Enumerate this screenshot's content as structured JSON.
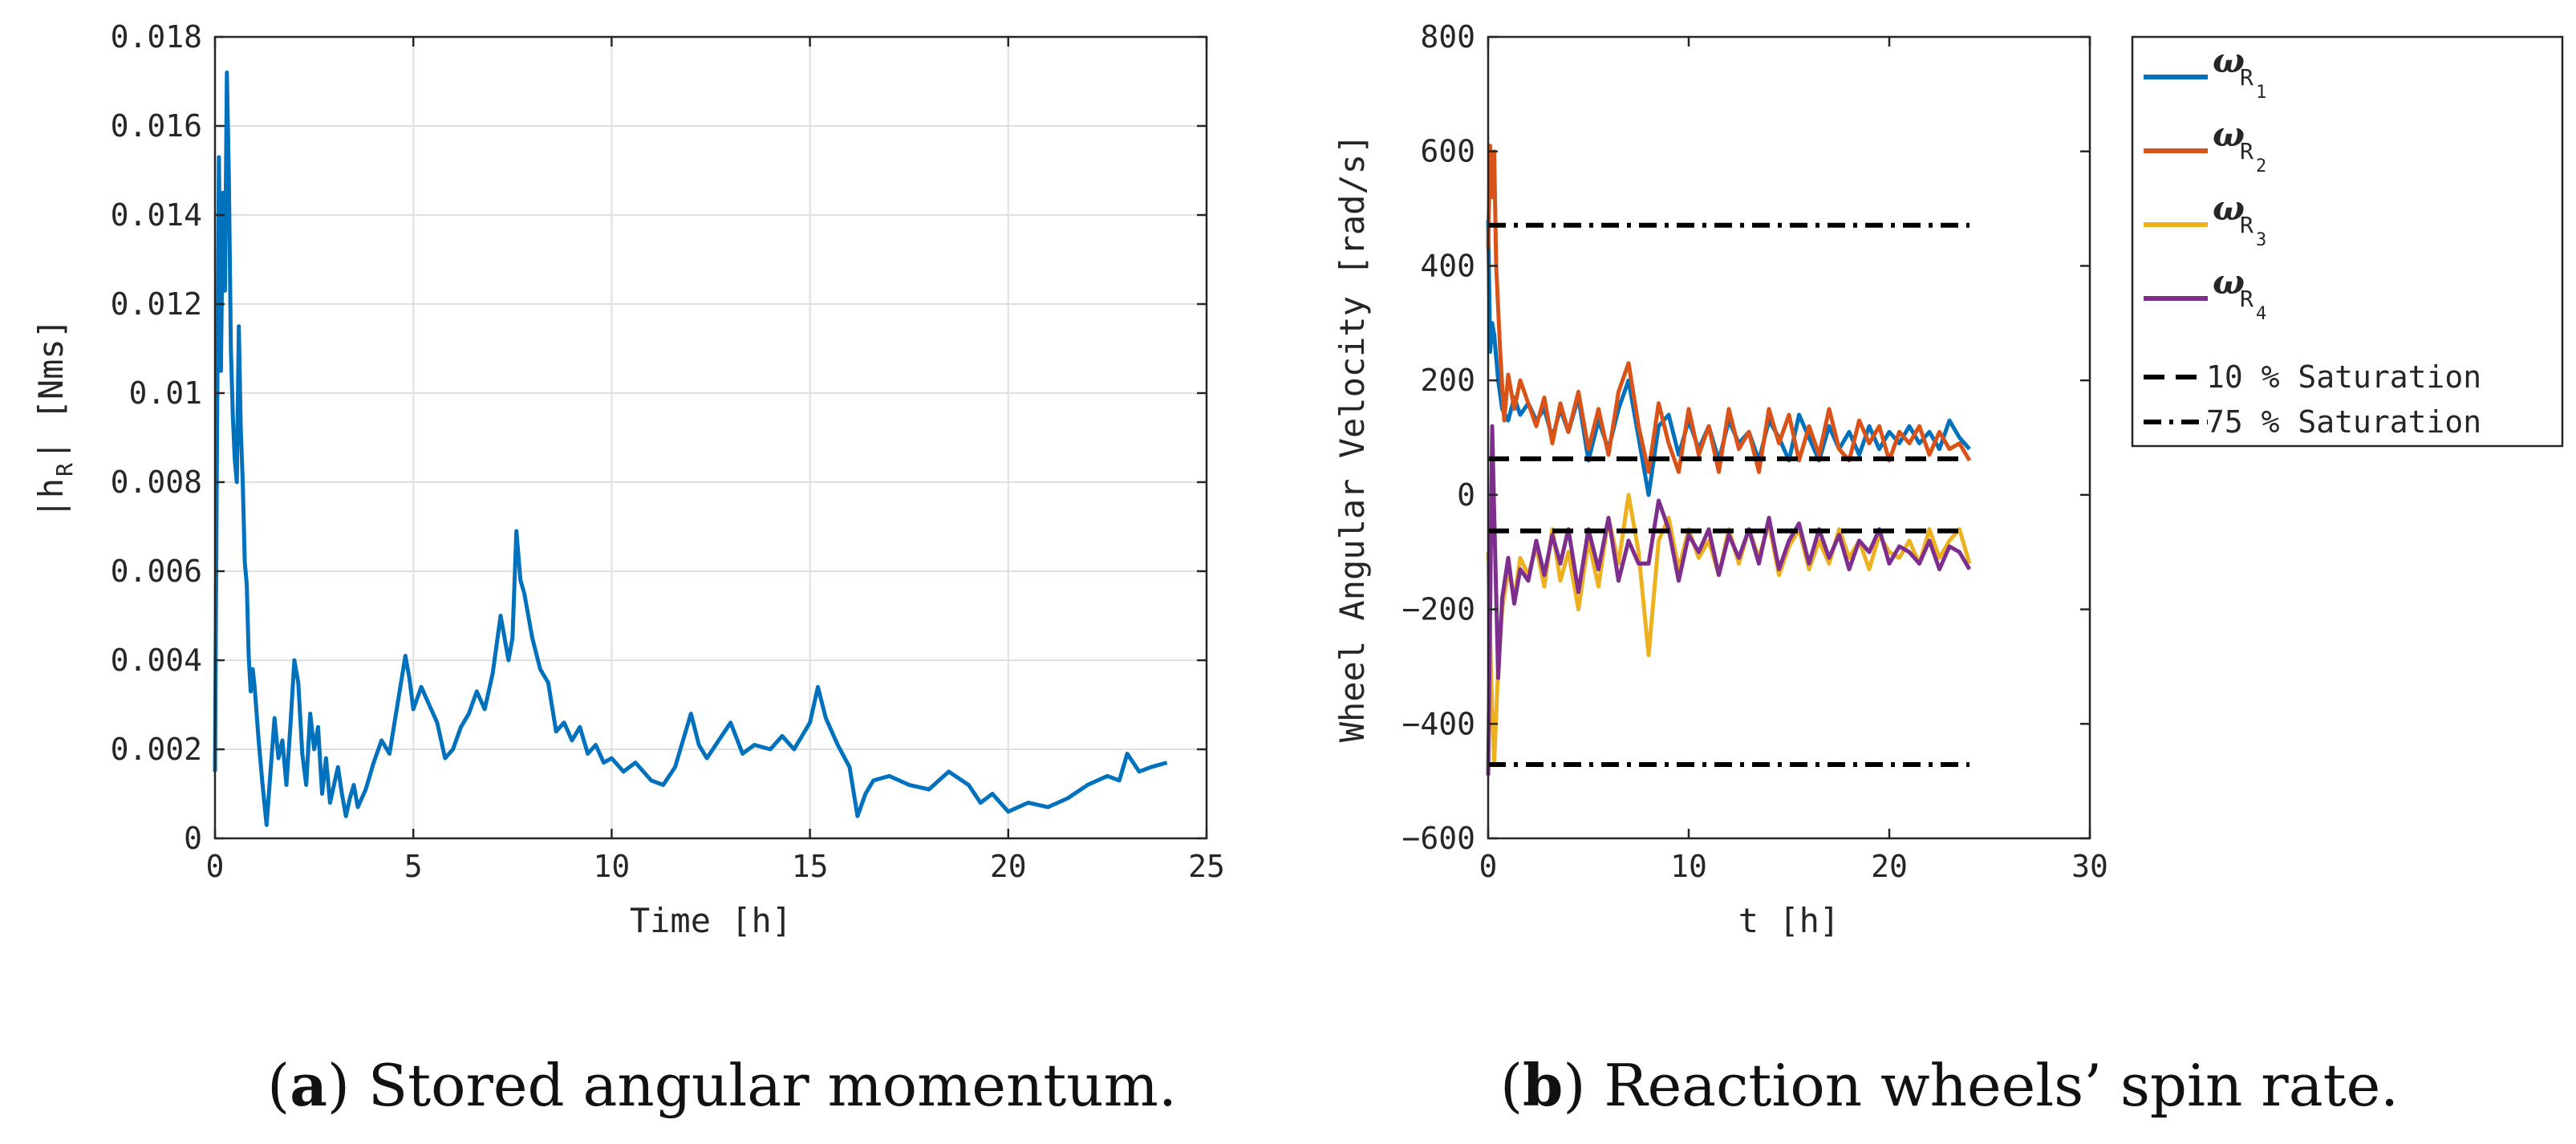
{
  "chart_data": [
    {
      "id": "a",
      "type": "line",
      "caption_label": "a",
      "caption_text": "Stored angular momentum.",
      "xlabel": "Time [h]",
      "ylabel": "|h",
      "ylabel_sub": "R",
      "ylabel_suffix": "| [Nms]",
      "xlim": [
        0,
        25
      ],
      "ylim": [
        0,
        0.018
      ],
      "xticks": [
        0,
        5,
        10,
        15,
        20,
        25
      ],
      "xtick_labels": [
        "0",
        "5",
        "10",
        "15",
        "20",
        "25"
      ],
      "yticks": [
        0,
        0.002,
        0.004,
        0.006,
        0.008,
        0.01,
        0.012,
        0.014,
        0.016,
        0.018
      ],
      "ytick_labels": [
        "0",
        "0.002",
        "0.004",
        "0.006",
        "0.008",
        "0.01",
        "0.012",
        "0.014",
        "0.016",
        "0.018"
      ],
      "grid": true,
      "series": [
        {
          "name": "|h_R|",
          "color": "#0072BD",
          "x": [
            0,
            0.05,
            0.1,
            0.15,
            0.2,
            0.25,
            0.3,
            0.35,
            0.4,
            0.45,
            0.5,
            0.55,
            0.6,
            0.65,
            0.7,
            0.75,
            0.8,
            0.85,
            0.9,
            0.95,
            1.0,
            1.1,
            1.2,
            1.3,
            1.4,
            1.5,
            1.6,
            1.7,
            1.8,
            1.9,
            2.0,
            2.1,
            2.2,
            2.3,
            2.4,
            2.5,
            2.6,
            2.7,
            2.8,
            2.9,
            3.0,
            3.1,
            3.2,
            3.3,
            3.4,
            3.5,
            3.6,
            3.8,
            4.0,
            4.2,
            4.4,
            4.6,
            4.8,
            4.9,
            5.0,
            5.2,
            5.4,
            5.6,
            5.8,
            6.0,
            6.2,
            6.4,
            6.6,
            6.8,
            7.0,
            7.2,
            7.4,
            7.5,
            7.6,
            7.7,
            7.8,
            8.0,
            8.2,
            8.4,
            8.6,
            8.8,
            9.0,
            9.2,
            9.4,
            9.6,
            9.8,
            10.0,
            10.3,
            10.6,
            11.0,
            11.3,
            11.6,
            12.0,
            12.2,
            12.4,
            12.7,
            13.0,
            13.3,
            13.6,
            14.0,
            14.3,
            14.6,
            15.0,
            15.2,
            15.4,
            15.7,
            16.0,
            16.2,
            16.4,
            16.6,
            17.0,
            17.5,
            18.0,
            18.5,
            19.0,
            19.3,
            19.6,
            20.0,
            20.5,
            21.0,
            21.5,
            22.0,
            22.5,
            22.8,
            23.0,
            23.3,
            23.6,
            24.0
          ],
          "y": [
            0.0015,
            0.009,
            0.0153,
            0.0105,
            0.0145,
            0.0123,
            0.0172,
            0.0148,
            0.011,
            0.0095,
            0.0085,
            0.008,
            0.0115,
            0.0092,
            0.008,
            0.0062,
            0.0057,
            0.0041,
            0.0033,
            0.0038,
            0.0034,
            0.0022,
            0.0012,
            0.0003,
            0.0015,
            0.0027,
            0.0018,
            0.0022,
            0.0012,
            0.0025,
            0.004,
            0.0035,
            0.0019,
            0.0012,
            0.0028,
            0.002,
            0.0025,
            0.001,
            0.0018,
            0.0008,
            0.0012,
            0.0016,
            0.001,
            0.0005,
            0.0009,
            0.0012,
            0.0007,
            0.0011,
            0.0017,
            0.0022,
            0.0019,
            0.003,
            0.0041,
            0.0036,
            0.0029,
            0.0034,
            0.003,
            0.0026,
            0.0018,
            0.002,
            0.0025,
            0.0028,
            0.0033,
            0.0029,
            0.0037,
            0.005,
            0.004,
            0.0045,
            0.0069,
            0.0058,
            0.0055,
            0.0045,
            0.0038,
            0.0035,
            0.0024,
            0.0026,
            0.0022,
            0.0025,
            0.0019,
            0.0021,
            0.0017,
            0.0018,
            0.0015,
            0.0017,
            0.0013,
            0.0012,
            0.0016,
            0.0028,
            0.0021,
            0.0018,
            0.0022,
            0.0026,
            0.0019,
            0.0021,
            0.002,
            0.0023,
            0.002,
            0.0026,
            0.0034,
            0.0027,
            0.0021,
            0.0016,
            0.0005,
            0.001,
            0.0013,
            0.0014,
            0.0012,
            0.0011,
            0.0015,
            0.0012,
            0.0008,
            0.001,
            0.0006,
            0.0008,
            0.0007,
            0.0009,
            0.0012,
            0.0014,
            0.0013,
            0.0019,
            0.0015,
            0.0016,
            0.0017
          ]
        }
      ]
    },
    {
      "id": "b",
      "type": "line",
      "caption_label": "b",
      "caption_text": "Reaction wheels’ spin rate.",
      "xlabel": "t [h]",
      "ylabel": "Wheel Angular Velocity [rad/s]",
      "xlim": [
        0,
        30
      ],
      "ylim": [
        -600,
        800
      ],
      "xticks": [
        0,
        10,
        20,
        30
      ],
      "xtick_labels": [
        "0",
        "10",
        "20",
        "30"
      ],
      "yticks": [
        -600,
        -400,
        -200,
        0,
        200,
        400,
        600,
        800
      ],
      "ytick_labels": [
        "−600",
        "−400",
        "−200",
        "0",
        "200",
        "400",
        "600",
        "800"
      ],
      "grid": false,
      "legend_position": "outside-right",
      "series": [
        {
          "name": "ω",
          "sub": "R",
          "subsub": "1",
          "color": "#0072BD",
          "x": [
            0,
            0.1,
            0.2,
            0.3,
            0.5,
            0.7,
            1.0,
            1.3,
            1.6,
            2.0,
            2.4,
            2.8,
            3.2,
            3.6,
            4.0,
            4.5,
            5.0,
            5.5,
            6.0,
            6.5,
            7.0,
            7.5,
            8.0,
            8.5,
            9.0,
            9.5,
            10.0,
            10.5,
            11.0,
            11.5,
            12.0,
            12.5,
            13.0,
            13.5,
            14.0,
            14.5,
            15.0,
            15.5,
            16.0,
            16.5,
            17.0,
            17.5,
            18.0,
            18.5,
            19.0,
            19.5,
            20.0,
            20.5,
            21.0,
            21.5,
            22.0,
            22.5,
            23.0,
            23.5,
            24.0
          ],
          "y": [
            480,
            250,
            300,
            280,
            200,
            150,
            130,
            170,
            140,
            160,
            130,
            150,
            100,
            150,
            110,
            170,
            60,
            130,
            80,
            150,
            200,
            100,
            0,
            120,
            140,
            70,
            130,
            80,
            120,
            60,
            130,
            90,
            110,
            60,
            130,
            100,
            60,
            140,
            100,
            60,
            120,
            80,
            110,
            70,
            120,
            80,
            110,
            90,
            120,
            90,
            110,
            80,
            130,
            100,
            80
          ]
        },
        {
          "name": "ω",
          "sub": "R",
          "subsub": "2",
          "color": "#D95319",
          "x": [
            0,
            0.1,
            0.2,
            0.3,
            0.4,
            0.6,
            0.8,
            1.0,
            1.3,
            1.6,
            2.0,
            2.4,
            2.8,
            3.2,
            3.6,
            4.0,
            4.5,
            5.0,
            5.5,
            6.0,
            6.5,
            7.0,
            7.5,
            8.0,
            8.5,
            9.0,
            9.5,
            10.0,
            10.5,
            11.0,
            11.5,
            12.0,
            12.5,
            13.0,
            13.5,
            14.0,
            14.5,
            15.0,
            15.5,
            16.0,
            16.5,
            17.0,
            17.5,
            18.0,
            18.5,
            19.0,
            19.5,
            20.0,
            20.5,
            21.0,
            21.5,
            22.0,
            22.5,
            23.0,
            23.5,
            24.0
          ],
          "y": [
            430,
            610,
            520,
            600,
            400,
            250,
            130,
            210,
            150,
            200,
            160,
            120,
            170,
            90,
            160,
            110,
            180,
            80,
            150,
            70,
            180,
            230,
            120,
            40,
            160,
            90,
            40,
            150,
            70,
            120,
            40,
            150,
            80,
            110,
            40,
            150,
            90,
            140,
            60,
            120,
            70,
            150,
            80,
            60,
            130,
            90,
            120,
            60,
            110,
            90,
            120,
            70,
            110,
            80,
            90,
            60
          ]
        },
        {
          "name": "ω",
          "sub": "R",
          "subsub": "3",
          "color": "#EDB120",
          "x": [
            0,
            0.1,
            0.2,
            0.3,
            0.5,
            0.7,
            1.0,
            1.3,
            1.6,
            2.0,
            2.4,
            2.8,
            3.2,
            3.6,
            4.0,
            4.5,
            5.0,
            5.5,
            6.0,
            6.5,
            7.0,
            7.5,
            8.0,
            8.5,
            9.0,
            9.5,
            10.0,
            10.5,
            11.0,
            11.5,
            12.0,
            12.5,
            13.0,
            13.5,
            14.0,
            14.5,
            15.0,
            15.5,
            16.0,
            16.5,
            17.0,
            17.5,
            18.0,
            18.5,
            19.0,
            19.5,
            20.0,
            20.5,
            21.0,
            21.5,
            22.0,
            22.5,
            23.0,
            23.5,
            24.0
          ],
          "y": [
            -100,
            -250,
            -380,
            -470,
            -300,
            -200,
            -130,
            -180,
            -110,
            -140,
            -90,
            -160,
            -60,
            -150,
            -100,
            -200,
            -80,
            -160,
            -40,
            -120,
            0,
            -100,
            -280,
            -80,
            -40,
            -130,
            -60,
            -110,
            -80,
            -140,
            -60,
            -120,
            -60,
            -110,
            -50,
            -140,
            -90,
            -60,
            -130,
            -80,
            -120,
            -60,
            -110,
            -80,
            -130,
            -70,
            -100,
            -110,
            -80,
            -120,
            -60,
            -110,
            -80,
            -60,
            -120
          ]
        },
        {
          "name": "ω",
          "sub": "R",
          "subsub": "4",
          "color": "#7E2F8E",
          "x": [
            0,
            0.1,
            0.2,
            0.3,
            0.5,
            0.7,
            1.0,
            1.3,
            1.6,
            2.0,
            2.4,
            2.8,
            3.2,
            3.6,
            4.0,
            4.5,
            5.0,
            5.5,
            6.0,
            6.5,
            7.0,
            7.5,
            8.0,
            8.5,
            9.0,
            9.5,
            10.0,
            10.5,
            11.0,
            11.5,
            12.0,
            12.5,
            13.0,
            13.5,
            14.0,
            14.5,
            15.0,
            15.5,
            16.0,
            16.5,
            17.0,
            17.5,
            18.0,
            18.5,
            19.0,
            19.5,
            20.0,
            20.5,
            21.0,
            21.5,
            22.0,
            22.5,
            23.0,
            23.5,
            24.0
          ],
          "y": [
            -490,
            -200,
            120,
            -30,
            -320,
            -180,
            -110,
            -190,
            -130,
            -150,
            -80,
            -140,
            -70,
            -120,
            -60,
            -170,
            -60,
            -130,
            -40,
            -150,
            -80,
            -120,
            -120,
            -10,
            -60,
            -150,
            -70,
            -100,
            -60,
            -140,
            -70,
            -110,
            -60,
            -120,
            -40,
            -130,
            -80,
            -50,
            -120,
            -60,
            -110,
            -70,
            -130,
            -80,
            -100,
            -60,
            -120,
            -90,
            -100,
            -120,
            -80,
            -130,
            -90,
            -100,
            -130
          ]
        },
        {
          "name": "10 % Saturation",
          "color": "#000000",
          "dash": "dashed",
          "segments": [
            {
              "x": [
                0,
                24
              ],
              "y": [
                63,
                63
              ]
            },
            {
              "x": [
                0,
                24
              ],
              "y": [
                -63,
                -63
              ]
            }
          ]
        },
        {
          "name": "75 % Saturation",
          "color": "#000000",
          "dash": "dashdot",
          "segments": [
            {
              "x": [
                0,
                24
              ],
              "y": [
                471,
                471
              ]
            },
            {
              "x": [
                0,
                24
              ],
              "y": [
                -471,
                -471
              ]
            }
          ]
        }
      ]
    }
  ]
}
